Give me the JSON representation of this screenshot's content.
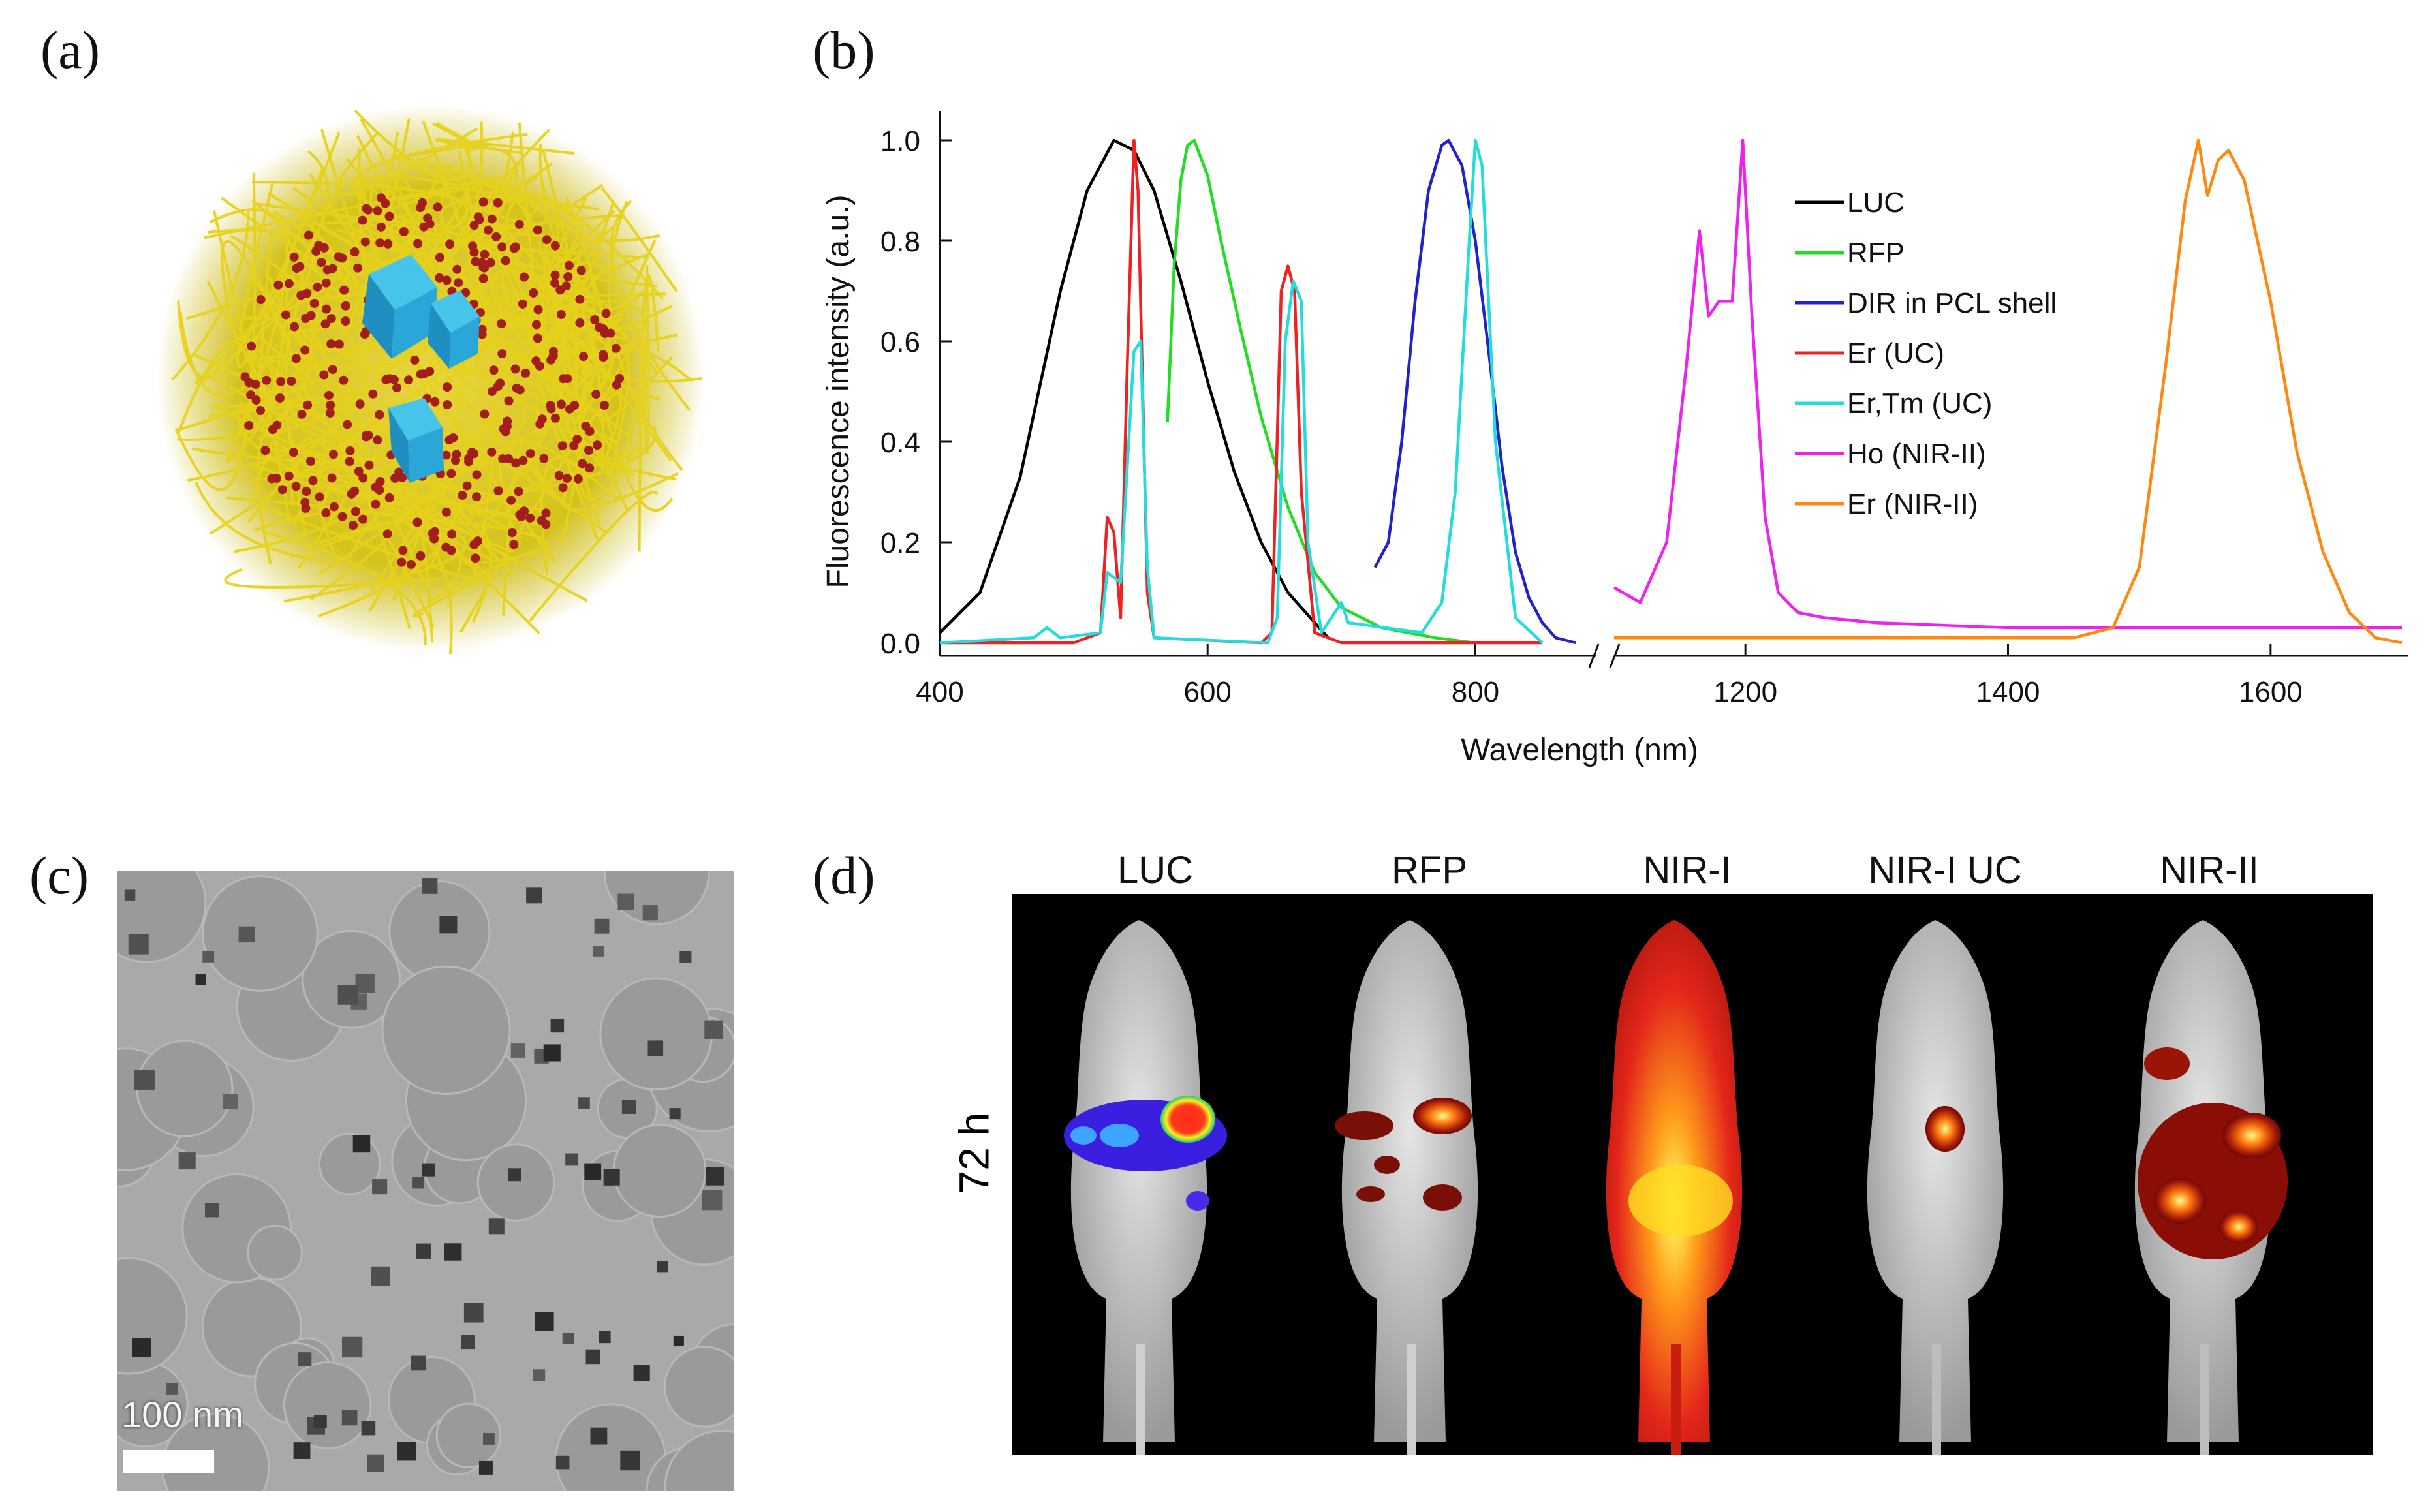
{
  "panels": {
    "a": "(a)",
    "b": "(b)",
    "c": "(c)",
    "d": "(d)"
  },
  "chart_data": {
    "type": "line",
    "title": "",
    "xlabel": "Wavelength (nm)",
    "ylabel": "Fluorescence intensity (a.u.)",
    "x_ticks": [
      "400",
      "600",
      "800",
      "1200",
      "1400",
      "1600"
    ],
    "y_ticks": [
      "0.0",
      "0.2",
      "0.4",
      "0.6",
      "0.8",
      "1.0"
    ],
    "xlim_left": [
      400,
      890
    ],
    "xlim_right": [
      1100,
      1700
    ],
    "ylim": [
      0,
      1.0
    ],
    "legend_position": "top-right",
    "series": [
      {
        "name": "LUC",
        "color": "#000000",
        "x": [
          400,
          430,
          460,
          490,
          510,
          530,
          545,
          560,
          580,
          600,
          620,
          640,
          660,
          680,
          690
        ],
        "y": [
          0.02,
          0.1,
          0.33,
          0.7,
          0.9,
          1.0,
          0.98,
          0.9,
          0.72,
          0.52,
          0.34,
          0.2,
          0.1,
          0.04,
          0.01
        ]
      },
      {
        "name": "RFP",
        "color": "#22dd22",
        "x": [
          570,
          575,
          580,
          585,
          590,
          600,
          610,
          625,
          640,
          660,
          680,
          700,
          730,
          770,
          800
        ],
        "y": [
          0.44,
          0.75,
          0.92,
          0.99,
          1.0,
          0.93,
          0.8,
          0.62,
          0.45,
          0.27,
          0.14,
          0.07,
          0.03,
          0.01,
          0.0
        ]
      },
      {
        "name": "DIR in PCL shell",
        "color": "#2222cc",
        "x": [
          725,
          735,
          745,
          755,
          765,
          775,
          780,
          790,
          800,
          810,
          820,
          830,
          840,
          850,
          860,
          875
        ],
        "y": [
          0.15,
          0.2,
          0.4,
          0.68,
          0.9,
          0.99,
          1.0,
          0.95,
          0.8,
          0.58,
          0.35,
          0.18,
          0.09,
          0.04,
          0.01,
          0.0
        ]
      },
      {
        "name": "Er (UC)",
        "color": "#ee2222",
        "x": [
          400,
          470,
          500,
          520,
          525,
          530,
          535,
          540,
          545,
          548,
          555,
          560,
          640,
          648,
          655,
          660,
          665,
          670,
          680,
          700,
          850
        ],
        "y": [
          0,
          0,
          0,
          0.02,
          0.25,
          0.22,
          0.05,
          0.55,
          1.0,
          0.9,
          0.1,
          0.01,
          0,
          0.02,
          0.7,
          0.75,
          0.7,
          0.3,
          0.02,
          0,
          0
        ]
      },
      {
        "name": "Er,Tm (UC)",
        "color": "#22dddd",
        "x": [
          400,
          470,
          480,
          490,
          520,
          525,
          535,
          545,
          550,
          555,
          560,
          645,
          652,
          658,
          664,
          670,
          675,
          685,
          695,
          700,
          705,
          760,
          775,
          785,
          795,
          800,
          805,
          815,
          830,
          850
        ],
        "y": [
          0,
          0.01,
          0.03,
          0.01,
          0.02,
          0.14,
          0.12,
          0.58,
          0.6,
          0.15,
          0.01,
          0,
          0.05,
          0.6,
          0.72,
          0.68,
          0.2,
          0.02,
          0.06,
          0.08,
          0.04,
          0.02,
          0.08,
          0.3,
          0.78,
          1.0,
          0.95,
          0.4,
          0.05,
          0
        ]
      },
      {
        "name": "Ho (NIR-II)",
        "color": "#ee22ee",
        "x": [
          1100,
          1120,
          1140,
          1155,
          1165,
          1172,
          1180,
          1190,
          1198,
          1205,
          1215,
          1225,
          1240,
          1260,
          1300,
          1400,
          1500,
          1600,
          1700
        ],
        "y": [
          0.11,
          0.08,
          0.2,
          0.55,
          0.82,
          0.65,
          0.68,
          0.68,
          1.0,
          0.65,
          0.25,
          0.1,
          0.06,
          0.05,
          0.04,
          0.03,
          0.03,
          0.03,
          0.03
        ]
      },
      {
        "name": "Er (NIR-II)",
        "color": "#ff8811",
        "x": [
          1100,
          1300,
          1450,
          1480,
          1500,
          1520,
          1535,
          1545,
          1552,
          1560,
          1568,
          1580,
          1600,
          1620,
          1640,
          1660,
          1680,
          1700
        ],
        "y": [
          0.01,
          0.01,
          0.01,
          0.03,
          0.15,
          0.55,
          0.88,
          1.0,
          0.89,
          0.96,
          0.98,
          0.92,
          0.68,
          0.38,
          0.18,
          0.06,
          0.01,
          0.0
        ]
      }
    ]
  },
  "mouse_panel": {
    "time_label": "72 h",
    "columns": [
      "LUC",
      "RFP",
      "NIR-I",
      "NIR-I UC",
      "NIR-II"
    ]
  },
  "tem": {
    "scale_label": "100 nm"
  }
}
